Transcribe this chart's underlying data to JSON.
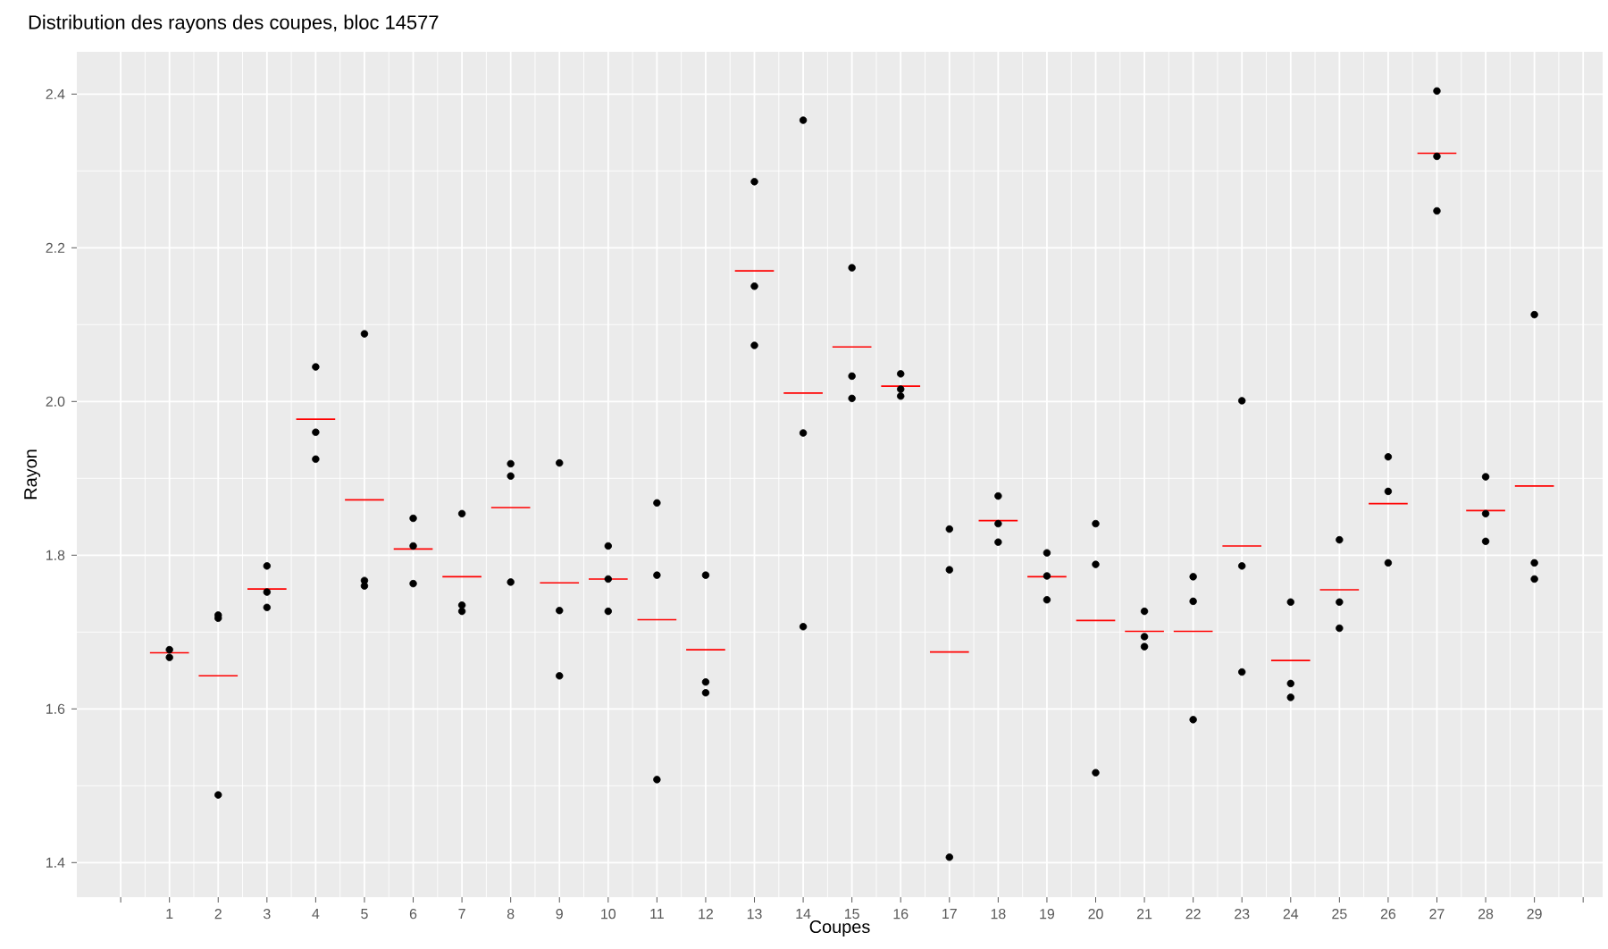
{
  "chart_data": {
    "type": "scatter",
    "title": "Distribution des rayons des coupes, bloc 14577",
    "xlabel": "Coupes",
    "ylabel": "Rayon",
    "xlim": [
      -0.9,
      30.4
    ],
    "ylim": [
      1.355,
      2.455
    ],
    "xticks": [
      {
        "value": 0,
        "label": null
      },
      1,
      2,
      3,
      4,
      5,
      6,
      7,
      8,
      9,
      10,
      11,
      12,
      13,
      14,
      15,
      16,
      17,
      18,
      19,
      20,
      21,
      22,
      23,
      24,
      25,
      26,
      27,
      28,
      29,
      {
        "value": 30,
        "label": null
      }
    ],
    "yticks": [
      1.4,
      1.6,
      1.8,
      {
        "value": 2,
        "label": "2.0"
      },
      2.2,
      2.4
    ],
    "grid": true,
    "series": [
      {
        "type": "scatter",
        "color": "#000000",
        "marker": "circle",
        "x": [
          1,
          1,
          2,
          2,
          2,
          3,
          3,
          3,
          4,
          4,
          4,
          5,
          5,
          5,
          6,
          6,
          6,
          7,
          7,
          7,
          8,
          8,
          8,
          9,
          9,
          9,
          10,
          10,
          10,
          11,
          11,
          11,
          12,
          12,
          12,
          13,
          13,
          13,
          14,
          14,
          14,
          15,
          15,
          15,
          16,
          16,
          16,
          17,
          17,
          17,
          18,
          18,
          18,
          19,
          19,
          19,
          20,
          20,
          20,
          21,
          21,
          21,
          22,
          22,
          22,
          23,
          23,
          23,
          24,
          24,
          24,
          25,
          25,
          25,
          26,
          26,
          26,
          27,
          27,
          27,
          28,
          28,
          28,
          29,
          29,
          29
        ],
        "values": [
          1.677,
          1.667,
          1.722,
          1.718,
          1.488,
          1.786,
          1.752,
          1.732,
          2.045,
          1.96,
          1.925,
          2.088,
          1.767,
          1.76,
          1.848,
          1.812,
          1.763,
          1.854,
          1.735,
          1.727,
          1.919,
          1.903,
          1.765,
          1.92,
          1.728,
          1.643,
          1.812,
          1.769,
          1.727,
          1.868,
          1.774,
          1.508,
          1.774,
          1.635,
          1.621,
          2.286,
          2.15,
          2.073,
          2.366,
          1.959,
          1.707,
          2.174,
          2.033,
          2.004,
          2.036,
          2.016,
          2.007,
          1.834,
          1.781,
          1.407,
          1.877,
          1.841,
          1.817,
          1.803,
          1.773,
          1.742,
          1.841,
          1.788,
          1.517,
          1.727,
          1.694,
          1.681,
          1.772,
          1.74,
          1.586,
          2.001,
          1.786,
          1.648,
          1.739,
          1.633,
          1.615,
          1.82,
          1.739,
          1.705,
          1.928,
          1.883,
          1.79,
          2.404,
          2.319,
          2.248,
          1.902,
          1.854,
          1.818,
          2.113,
          1.79,
          1.769
        ]
      },
      {
        "type": "line",
        "color": "#ff0000",
        "marker": "none",
        "x": [
          0.6,
          1.4,
          1.5,
          1.6,
          2.4,
          2.5,
          2.6,
          3.4,
          3.5,
          3.6,
          4.4,
          4.5,
          4.6,
          5.4,
          5.5,
          5.6,
          6.4,
          6.5,
          6.6,
          7.4,
          7.5,
          7.6,
          8.4,
          8.5,
          8.6,
          9.4,
          9.5,
          9.6,
          10.4,
          10.5,
          10.6,
          11.4,
          11.5,
          11.6,
          12.4,
          12.5,
          12.6,
          13.4,
          13.5,
          13.6,
          14.4,
          14.5,
          14.6,
          15.4,
          15.5,
          15.6,
          16.4,
          16.5,
          16.6,
          17.4,
          17.5,
          17.6,
          18.4,
          18.5,
          18.6,
          19.4,
          19.5,
          19.6,
          20.4,
          20.5,
          20.6,
          21.4,
          21.5,
          21.6,
          22.4,
          22.5,
          22.6,
          23.4,
          23.5,
          23.6,
          24.4,
          24.5,
          24.6,
          25.4,
          25.5,
          25.6,
          26.4,
          26.5,
          26.6,
          27.4,
          27.5,
          27.6,
          28.4,
          28.5,
          28.6,
          29.4
        ],
        "values": [
          1.673,
          1.673,
          null,
          1.643,
          1.643,
          null,
          1.756,
          1.756,
          null,
          1.977,
          1.977,
          null,
          1.872,
          1.872,
          null,
          1.808,
          1.808,
          null,
          1.772,
          1.772,
          null,
          1.862,
          1.862,
          null,
          1.764,
          1.764,
          null,
          1.769,
          1.769,
          null,
          1.716,
          1.716,
          null,
          1.677,
          1.677,
          null,
          2.17,
          2.17,
          null,
          2.011,
          2.011,
          null,
          2.071,
          2.071,
          null,
          2.02,
          2.02,
          null,
          1.674,
          1.674,
          null,
          1.845,
          1.845,
          null,
          1.772,
          1.772,
          null,
          1.715,
          1.715,
          null,
          1.701,
          1.701,
          null,
          1.701,
          1.701,
          null,
          1.812,
          1.812,
          null,
          1.663,
          1.663,
          null,
          1.755,
          1.755,
          null,
          1.867,
          1.867,
          null,
          2.323,
          2.323,
          null,
          1.858,
          1.858,
          null,
          1.89,
          1.89
        ]
      }
    ]
  }
}
